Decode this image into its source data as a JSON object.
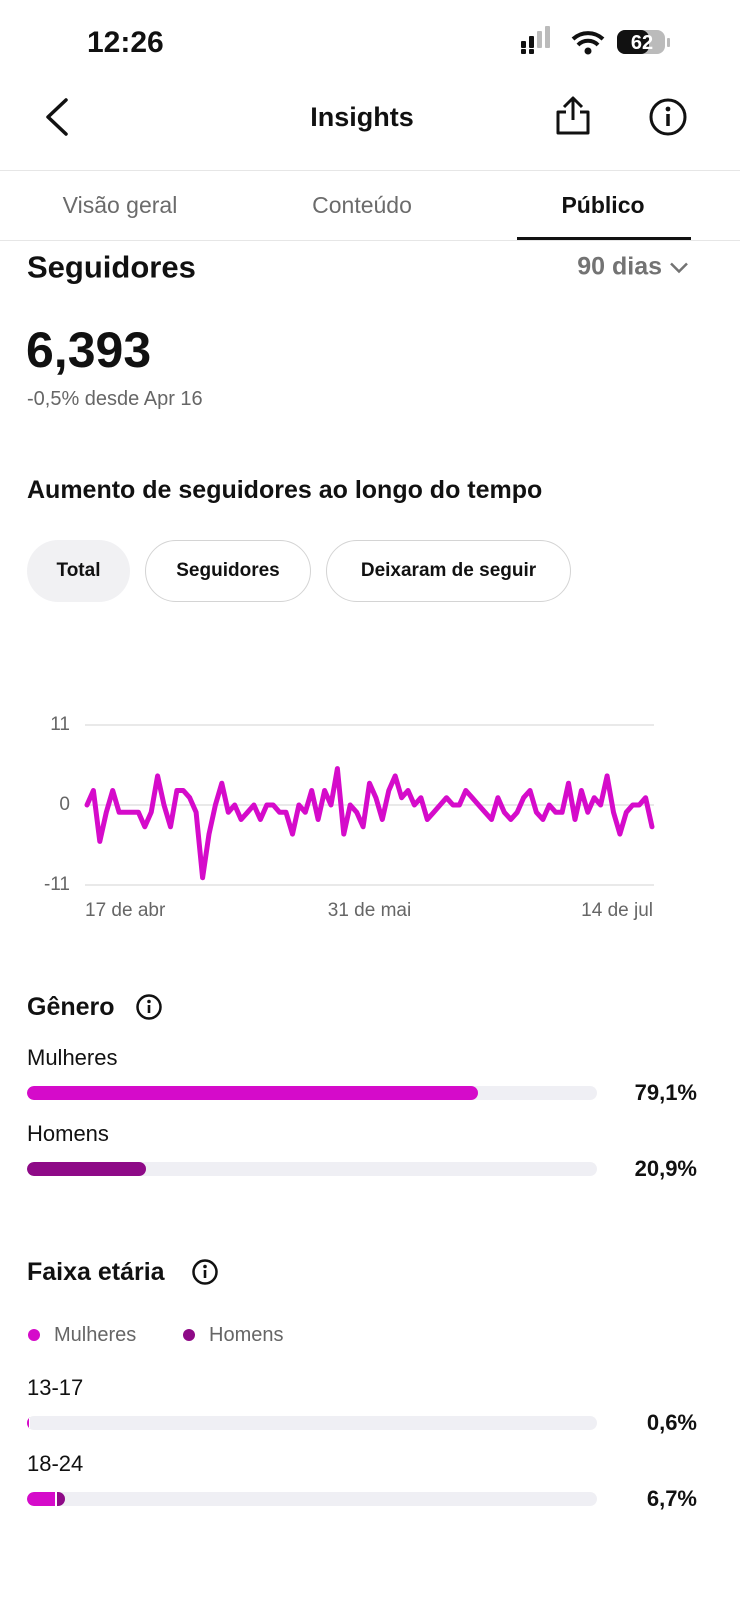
{
  "status_bar": {
    "time": "12:26",
    "battery": "62"
  },
  "header": {
    "title": "Insights"
  },
  "tabs": [
    "Visão geral",
    "Conteúdo",
    "Público"
  ],
  "active_tab": 2,
  "followers": {
    "title": "Seguidores",
    "period": "90 dias",
    "count": "6,393",
    "change": "-0,5% desde Apr 16"
  },
  "chart_data": [
    {
      "type": "line",
      "title": "Aumento de seguidores ao longo do tempo",
      "filters": [
        "Total",
        "Seguidores",
        "Deixaram de seguir"
      ],
      "active_filter": 0,
      "categories": [
        "17 de abr",
        null,
        null,
        null,
        null,
        null,
        null,
        null,
        null,
        null,
        null,
        null,
        null,
        null,
        null,
        null,
        null,
        null,
        null,
        null,
        null,
        null,
        null,
        null,
        null,
        null,
        null,
        null,
        null,
        null,
        null,
        null,
        null,
        null,
        null,
        null,
        null,
        null,
        null,
        null,
        null,
        null,
        null,
        null,
        "31 de mai",
        null,
        null,
        null,
        null,
        null,
        null,
        null,
        null,
        null,
        null,
        null,
        null,
        null,
        null,
        null,
        null,
        null,
        null,
        null,
        null,
        null,
        null,
        null,
        null,
        null,
        null,
        null,
        null,
        null,
        null,
        null,
        null,
        null,
        null,
        null,
        null,
        null,
        null,
        null,
        null,
        null,
        null,
        null,
        "14 de jul"
      ],
      "values": [
        0,
        2,
        -5,
        -1,
        2,
        -1,
        -1,
        -1,
        -1,
        -3,
        -1,
        4,
        0,
        -3,
        2,
        2,
        1,
        -1,
        -10,
        -4,
        0,
        3,
        -1,
        0,
        -2,
        -1,
        0,
        -2,
        0,
        0,
        -1,
        -1,
        -4,
        0,
        -1,
        2,
        -2,
        2,
        0,
        5,
        -4,
        0,
        -1,
        -3,
        3,
        1,
        -2,
        2,
        4,
        1,
        2,
        0,
        1,
        -2,
        -1,
        0,
        1,
        0,
        0,
        2,
        1,
        0,
        -1,
        -2,
        1,
        -1,
        -2,
        -1,
        1,
        2,
        -1,
        -2,
        0,
        -1,
        -1,
        3,
        -2,
        2,
        -1,
        1,
        0,
        4,
        -1,
        -4,
        -1,
        0,
        0,
        1,
        -3
      ],
      "color": "#d50bca",
      "ylim": [
        -11,
        11
      ],
      "yticks": [
        11,
        0,
        -11
      ],
      "grid": true
    },
    {
      "type": "bar",
      "title": "Gênero",
      "categories": [
        "Mulheres",
        "Homens"
      ],
      "values": [
        79.1,
        20.9
      ],
      "value_labels": [
        "79,1%",
        "20,9%"
      ],
      "colors": [
        "#d50bca",
        "#8e0a87"
      ],
      "xlim": [
        0,
        100
      ]
    },
    {
      "type": "stacked-bar",
      "title": "Faixa etária",
      "categories": [
        "13-17",
        "18-24"
      ],
      "series": [
        {
          "name": "Mulheres",
          "color": "#d50bca",
          "values": [
            0.4,
            4.9
          ]
        },
        {
          "name": "Homens",
          "color": "#8e0a87",
          "values": [
            0.2,
            1.8
          ]
        }
      ],
      "totals": [
        0.6,
        6.7
      ],
      "total_labels": [
        "0,6%",
        "6,7%"
      ],
      "xlim": [
        0,
        100
      ]
    }
  ]
}
